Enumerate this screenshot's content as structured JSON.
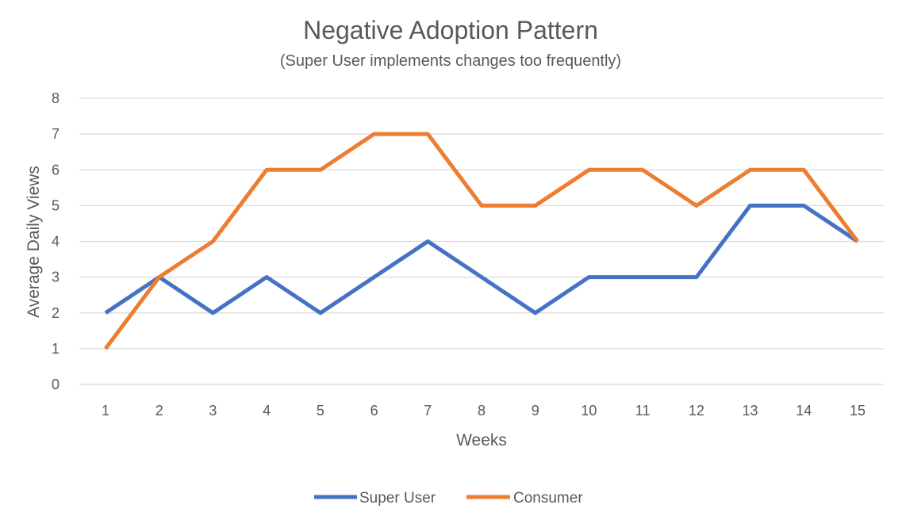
{
  "chart_data": {
    "type": "line",
    "title": "Negative Adoption Pattern",
    "subtitle": "(Super User implements changes too frequently)",
    "xlabel": "Weeks",
    "ylabel": "Average Daily Views",
    "categories": [
      "1",
      "2",
      "3",
      "4",
      "5",
      "6",
      "7",
      "8",
      "9",
      "10",
      "11",
      "12",
      "13",
      "14",
      "15"
    ],
    "ylim": [
      0,
      8
    ],
    "yticks": [
      "0",
      "1",
      "2",
      "3",
      "4",
      "5",
      "6",
      "7",
      "8"
    ],
    "grid": true,
    "legend_position": "bottom",
    "series": [
      {
        "name": "Super User",
        "color": "#4472c4",
        "values": [
          2,
          3,
          2,
          3,
          2,
          3,
          4,
          3,
          2,
          3,
          3,
          3,
          5,
          5,
          4
        ]
      },
      {
        "name": "Consumer",
        "color": "#ed7d31",
        "values": [
          1,
          3,
          4,
          6,
          6,
          7,
          7,
          5,
          5,
          6,
          6,
          5,
          6,
          6,
          4
        ]
      }
    ]
  }
}
